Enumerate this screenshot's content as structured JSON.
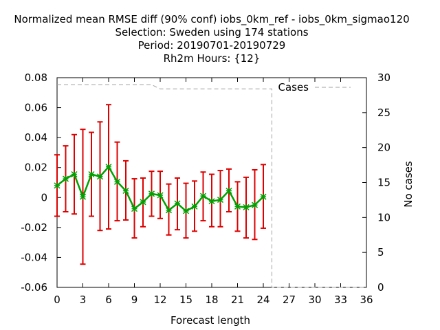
{
  "chart_data": {
    "type": "line",
    "title_lines": [
      "Normalized mean RMSE diff (90% conf) iobs_0km_ref - iobs_0km_sigmao120",
      "Selection: Sweden using   174 stations",
      "Period: 20190701-20190729",
      "Rh2m   Hours: {12}"
    ],
    "xlabel": "Forecast length",
    "ylabel": "",
    "y2label": "No cases",
    "xlim": [
      0,
      36
    ],
    "ylim": [
      -0.06,
      0.08
    ],
    "y2lim": [
      0,
      30
    ],
    "xticks": [
      "0",
      "3",
      "6",
      "9",
      "12",
      "15",
      "18",
      "21",
      "24",
      "27",
      "30",
      "33",
      "36"
    ],
    "yticks": [
      "0.08",
      "0.06",
      "0.04",
      "0.02",
      "0",
      "-0.02",
      "-0.04",
      "-0.06"
    ],
    "y2ticks": [
      "30",
      "25",
      "20",
      "15",
      "10",
      "5",
      "0"
    ],
    "grid": false,
    "legend": {
      "position": "top-right",
      "entries": [
        {
          "name": "Cases",
          "color": "#a0a0a0",
          "style": "dashed"
        }
      ]
    },
    "series": [
      {
        "color": "#00a000",
        "marker": "star",
        "marker_color": "#00a000",
        "errorbar_color": "#dd0000",
        "axis": "y",
        "x": [
          0,
          1,
          2,
          3,
          4,
          5,
          6,
          7,
          8,
          9,
          10,
          11,
          12,
          13,
          14,
          15,
          16,
          17,
          18,
          19,
          20,
          21,
          22,
          23,
          24
        ],
        "values": [
          0.008,
          0.0125,
          0.0155,
          0.0005,
          0.0155,
          0.014,
          0.0205,
          0.0105,
          0.0045,
          -0.0075,
          -0.003,
          0.0025,
          0.0015,
          -0.0085,
          -0.004,
          -0.009,
          -0.006,
          0.001,
          -0.0025,
          -0.0015,
          0.0045,
          -0.006,
          -0.0065,
          -0.005,
          0.0005
        ],
        "lower": [
          -0.0125,
          -0.0095,
          -0.011,
          -0.0445,
          -0.0125,
          -0.022,
          -0.021,
          -0.0155,
          -0.015,
          -0.027,
          -0.0195,
          -0.0125,
          -0.014,
          -0.025,
          -0.0215,
          -0.027,
          -0.0225,
          -0.0155,
          -0.0195,
          -0.0195,
          -0.0095,
          -0.0225,
          -0.027,
          -0.028,
          -0.0205
        ],
        "upper": [
          0.0285,
          0.0345,
          0.042,
          0.0455,
          0.0435,
          0.0505,
          0.062,
          0.037,
          0.0245,
          0.0125,
          0.013,
          0.0175,
          0.0175,
          0.009,
          0.013,
          0.0095,
          0.011,
          0.017,
          0.0155,
          0.018,
          0.019,
          0.0105,
          0.0135,
          0.0185,
          0.022
        ]
      },
      {
        "name": "Cases",
        "color": "#a0a0a0",
        "style": "dashed",
        "axis": "y2",
        "x": [
          0,
          1,
          2,
          3,
          4,
          5,
          6,
          7,
          8,
          9,
          10,
          11,
          12,
          13,
          14,
          15,
          16,
          17,
          18,
          19,
          20,
          21,
          22,
          23,
          24,
          25,
          26,
          27,
          28,
          29,
          30,
          31,
          32,
          33,
          34,
          35,
          36
        ],
        "values": [
          29,
          29,
          29,
          29,
          29,
          29,
          29,
          29,
          29,
          29,
          29,
          29,
          28.4,
          28.4,
          28.4,
          28.4,
          28.4,
          28.4,
          28.4,
          28.4,
          28.4,
          28.4,
          28.4,
          28.4,
          28.4,
          0,
          0,
          0,
          0,
          0,
          0,
          0,
          0,
          0,
          0,
          0,
          0
        ]
      }
    ]
  }
}
